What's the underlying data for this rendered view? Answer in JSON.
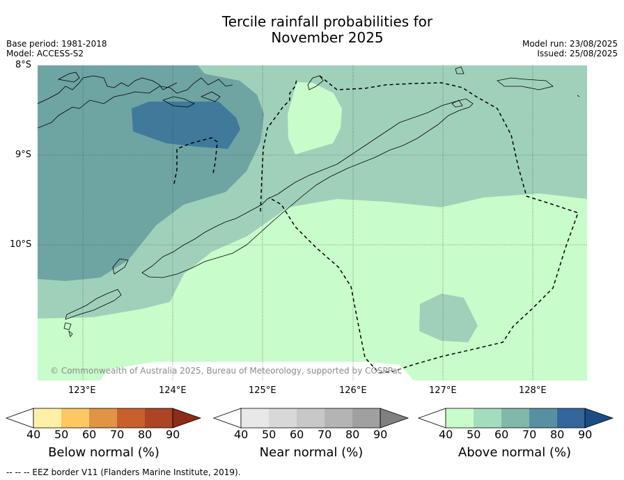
{
  "title_line1": "Tercile rainfall probabilities for",
  "title_line2": "November 2025",
  "meta_left": {
    "base_period": "Base period: 1981-2018",
    "model": "Model: ACCESS-S2"
  },
  "meta_right": {
    "model_run": "Model run: 23/08/2025",
    "issued": "Issued: 25/08/2025"
  },
  "lat_labels": [
    "8°S",
    "9°S",
    "10°S"
  ],
  "lon_labels": [
    "123°E",
    "124°E",
    "125°E",
    "126°E",
    "127°E",
    "128°E"
  ],
  "copyright": "© Commonwealth of Australia 2025, Bureau of Meteorology, supported by COSPPac",
  "colorbars": [
    {
      "label": "Below normal (%)",
      "ticks": [
        "40",
        "50",
        "60",
        "70",
        "80",
        "90"
      ],
      "colors": [
        "#ffffff",
        "#fff0a8",
        "#fdc862",
        "#e09444",
        "#c8602e",
        "#ac4426",
        "#8c2c18"
      ]
    },
    {
      "label": "Near normal (%)",
      "ticks": [
        "40",
        "50",
        "60",
        "70",
        "80",
        "90"
      ],
      "colors": [
        "#ffffff",
        "#e8e8e8",
        "#d8d8d8",
        "#c8c8c8",
        "#b4b4b4",
        "#a0a0a0",
        "#808080"
      ]
    },
    {
      "label": "Above normal (%)",
      "ticks": [
        "40",
        "50",
        "60",
        "70",
        "80",
        "90"
      ],
      "colors": [
        "#ffffff",
        "#c8fcca",
        "#a4dcbe",
        "#80b8aa",
        "#5890a2",
        "#33669a",
        "#1c4c84"
      ]
    }
  ],
  "footnote": "--  --  -- EEZ border V11 (Flanders Marine Institute, 2019)."
}
